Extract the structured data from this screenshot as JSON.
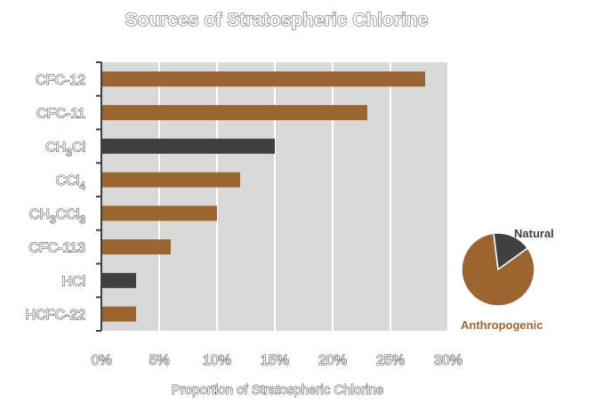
{
  "chart_data": [
    {
      "type": "bar",
      "orientation": "horizontal",
      "title": "Sources of Stratospheric Chlorine",
      "xlabel": "Proportion of Stratospheric Chlorine",
      "ylabel": "",
      "categories": [
        {
          "text": "CFC-12",
          "sub": ""
        },
        {
          "text": "CFC-11",
          "sub": ""
        },
        {
          "text": "CH",
          "sub": "3",
          "tail": "Cl"
        },
        {
          "text": "CCl",
          "sub": "4"
        },
        {
          "text": "CH",
          "sub": "3",
          "tail": "CCl",
          "sub2": "3"
        },
        {
          "text": "CFC-113",
          "sub": ""
        },
        {
          "text": "HCl",
          "sub": ""
        },
        {
          "text": "HCFC-22",
          "sub": ""
        }
      ],
      "values": [
        28,
        23,
        15,
        12,
        10,
        6,
        3,
        3
      ],
      "bar_kinds": [
        "anthropogenic",
        "anthropogenic",
        "natural",
        "anthropogenic",
        "anthropogenic",
        "anthropogenic",
        "natural",
        "anthropogenic"
      ],
      "xlim": [
        0,
        30
      ],
      "xticks": [
        "0%",
        "5%",
        "10%",
        "15%",
        "20%",
        "25%",
        "30%"
      ],
      "grid": true,
      "colors": {
        "anthropogenic": "#9b6531",
        "natural": "#404040",
        "plot_bg": "#d9d9d9",
        "grid": "#ffffff"
      }
    },
    {
      "type": "pie",
      "slices": [
        {
          "label": "Anthropogenic",
          "value": 83,
          "color": "#9b6531"
        },
        {
          "label": "Natural",
          "value": 17,
          "color": "#404040"
        }
      ]
    }
  ]
}
